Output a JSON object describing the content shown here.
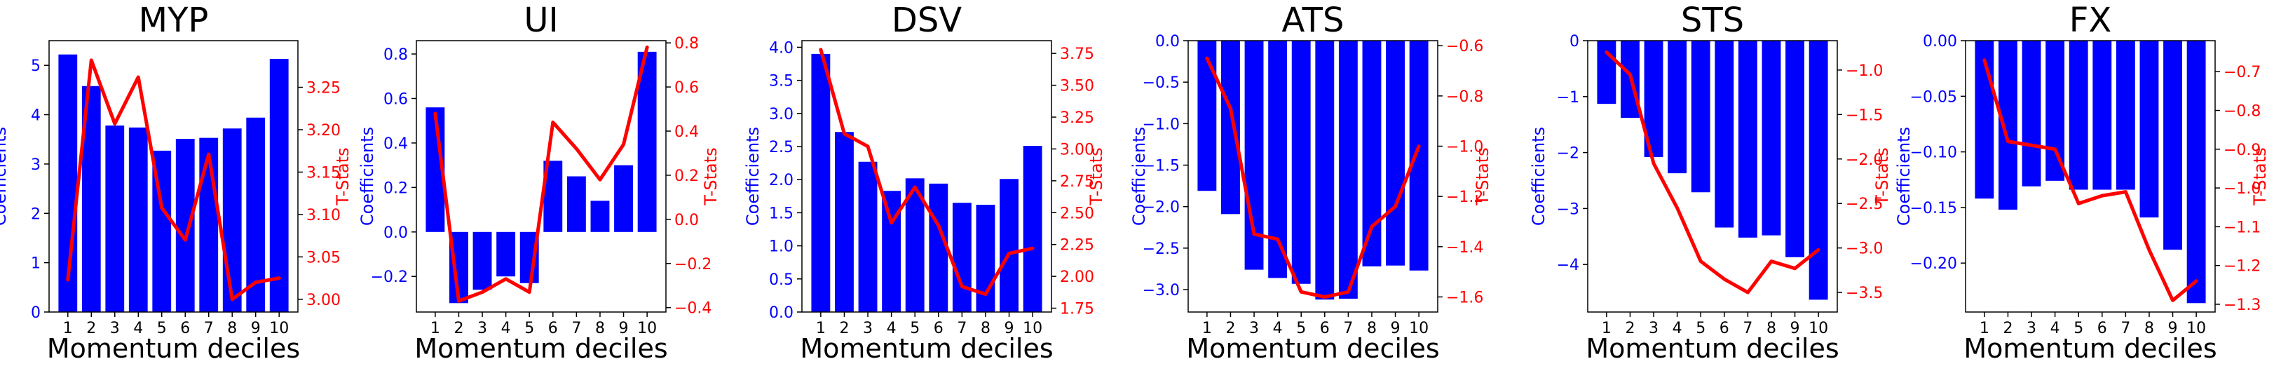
{
  "chart_data": [
    {
      "type": "bar+line",
      "title": "MYP",
      "xlabel": "Momentum deciles",
      "ylabel_left": "Coefficients",
      "ylabel_right": "T-Stats",
      "categories": [
        "1",
        "2",
        "3",
        "4",
        "5",
        "6",
        "7",
        "8",
        "9",
        "10"
      ],
      "coefficients": [
        5.22,
        4.58,
        3.78,
        3.74,
        3.27,
        3.51,
        3.53,
        3.72,
        3.94,
        5.13
      ],
      "tstats": [
        3.023,
        3.282,
        3.207,
        3.262,
        3.108,
        3.07,
        3.171,
        3.0,
        3.02,
        3.025
      ],
      "ylim_left": [
        0,
        5.5
      ],
      "ylim_right": [
        2.985,
        3.305
      ],
      "yticks_left": [
        0,
        1,
        2,
        3,
        4,
        5
      ],
      "yticks_right": [
        3.0,
        3.05,
        3.1,
        3.15,
        3.2,
        3.25
      ],
      "ytick_labels_left": [
        "0",
        "1",
        "2",
        "3",
        "4",
        "5"
      ],
      "ytick_labels_right": [
        "3.00",
        "3.05",
        "3.10",
        "3.15",
        "3.20",
        "3.25"
      ]
    },
    {
      "type": "bar+line",
      "title": "UI",
      "xlabel": "Momentum deciles",
      "ylabel_left": "Coefficients",
      "ylabel_right": "T-Stats",
      "categories": [
        "1",
        "2",
        "3",
        "4",
        "5",
        "6",
        "7",
        "8",
        "9",
        "10"
      ],
      "coefficients": [
        0.56,
        -0.32,
        -0.26,
        -0.2,
        -0.23,
        0.32,
        0.25,
        0.14,
        0.3,
        0.81
      ],
      "tstats": [
        0.48,
        -0.37,
        -0.33,
        -0.27,
        -0.33,
        0.44,
        0.32,
        0.18,
        0.34,
        0.78
      ],
      "ylim_left": [
        -0.36,
        0.86
      ],
      "ylim_right": [
        -0.42,
        0.81
      ],
      "yticks_left": [
        -0.2,
        0.0,
        0.2,
        0.4,
        0.6,
        0.8
      ],
      "yticks_right": [
        -0.4,
        -0.2,
        0.0,
        0.2,
        0.4,
        0.6,
        0.8
      ],
      "ytick_labels_left": [
        "−0.2",
        "0.0",
        "0.2",
        "0.4",
        "0.6",
        "0.8"
      ],
      "ytick_labels_right": [
        "−0.4",
        "−0.2",
        "0.0",
        "0.2",
        "0.4",
        "0.6",
        "0.8"
      ]
    },
    {
      "type": "bar+line",
      "title": "DSV",
      "xlabel": "Momentum deciles",
      "ylabel_left": "Coefficients",
      "ylabel_right": "T-Stats",
      "categories": [
        "1",
        "2",
        "3",
        "4",
        "5",
        "6",
        "7",
        "8",
        "9",
        "10"
      ],
      "coefficients": [
        3.9,
        2.72,
        2.27,
        1.83,
        2.02,
        1.94,
        1.65,
        1.62,
        2.01,
        2.51
      ],
      "tstats": [
        3.78,
        3.12,
        3.02,
        2.42,
        2.7,
        2.4,
        1.92,
        1.86,
        2.18,
        2.22
      ],
      "ylim_left": [
        0,
        4.1
      ],
      "ylim_right": [
        1.72,
        3.85
      ],
      "yticks_left": [
        0.0,
        0.5,
        1.0,
        1.5,
        2.0,
        2.5,
        3.0,
        3.5,
        4.0
      ],
      "yticks_right": [
        1.75,
        2.0,
        2.25,
        2.5,
        2.75,
        3.0,
        3.25,
        3.5,
        3.75
      ],
      "ytick_labels_left": [
        "0.0",
        "0.5",
        "1.0",
        "1.5",
        "2.0",
        "2.5",
        "3.0",
        "3.5",
        "4.0"
      ],
      "ytick_labels_right": [
        "1.75",
        "2.00",
        "2.25",
        "2.50",
        "2.75",
        "3.00",
        "3.25",
        "3.50",
        "3.75"
      ]
    },
    {
      "type": "bar+line",
      "title": "ATS",
      "xlabel": "Momentum deciles",
      "ylabel_left": "Coefficients",
      "ylabel_right": "T-Stats",
      "categories": [
        "1",
        "2",
        "3",
        "4",
        "5",
        "6",
        "7",
        "8",
        "9",
        "10"
      ],
      "coefficients": [
        -1.81,
        -2.09,
        -2.76,
        -2.86,
        -2.93,
        -3.12,
        -3.11,
        -2.72,
        -2.71,
        -2.77
      ],
      "tstats": [
        -0.65,
        -0.85,
        -1.35,
        -1.37,
        -1.58,
        -1.6,
        -1.58,
        -1.32,
        -1.24,
        -1.0
      ],
      "ylim_left": [
        -3.27,
        0.0
      ],
      "ylim_right": [
        -1.66,
        -0.58
      ],
      "yticks_left": [
        -3.0,
        -2.5,
        -2.0,
        -1.5,
        -1.0,
        -0.5,
        0.0
      ],
      "yticks_right": [
        -1.6,
        -1.4,
        -1.2,
        -1.0,
        -0.8,
        -0.6
      ],
      "ytick_labels_left": [
        "−3.0",
        "−2.5",
        "−2.0",
        "−1.5",
        "−1.0",
        "−0.5",
        "0.0"
      ],
      "ytick_labels_right": [
        "−1.6",
        "−1.4",
        "−1.2",
        "−1.0",
        "−0.8",
        "−0.6"
      ]
    },
    {
      "type": "bar+line",
      "title": "STS",
      "xlabel": "Momentum deciles",
      "ylabel_left": "Coefficients",
      "ylabel_right": "T-Stats",
      "categories": [
        "1",
        "2",
        "3",
        "4",
        "5",
        "6",
        "7",
        "8",
        "9",
        "10"
      ],
      "coefficients": [
        -1.13,
        -1.38,
        -2.08,
        -2.37,
        -2.71,
        -3.34,
        -3.52,
        -3.48,
        -3.87,
        -4.63
      ],
      "tstats": [
        -0.8,
        -1.05,
        -2.05,
        -2.55,
        -3.15,
        -3.35,
        -3.5,
        -3.15,
        -3.23,
        -3.02
      ],
      "ylim_left": [
        -4.85,
        0.0
      ],
      "ylim_right": [
        -3.72,
        -0.67
      ],
      "yticks_left": [
        -4,
        -3,
        -2,
        -1,
        0
      ],
      "yticks_right": [
        -3.5,
        -3.0,
        -2.5,
        -2.0,
        -1.5,
        -1.0
      ],
      "ytick_labels_left": [
        "−4",
        "−3",
        "−2",
        "−1",
        "0"
      ],
      "ytick_labels_right": [
        "−3.5",
        "−3.0",
        "−2.5",
        "−2.0",
        "−1.5",
        "−1.0"
      ]
    },
    {
      "type": "bar+line",
      "title": "FX",
      "xlabel": "Momentum deciles",
      "ylabel_left": "Coefficients",
      "ylabel_right": "T-Stats",
      "categories": [
        "1",
        "2",
        "3",
        "4",
        "5",
        "6",
        "7",
        "8",
        "9",
        "10"
      ],
      "coefficients": [
        -0.142,
        -0.152,
        -0.131,
        -0.126,
        -0.134,
        -0.134,
        -0.134,
        -0.159,
        -0.188,
        -0.236
      ],
      "tstats": [
        -0.67,
        -0.88,
        -0.89,
        -0.9,
        -1.04,
        -1.02,
        -1.01,
        -1.16,
        -1.29,
        -1.24
      ],
      "ylim_left": [
        -0.244,
        0.0
      ],
      "ylim_right": [
        -1.32,
        -0.62
      ],
      "yticks_left": [
        -0.2,
        -0.15,
        -0.1,
        -0.05,
        0.0
      ],
      "yticks_right": [
        -1.3,
        -1.2,
        -1.1,
        -1.0,
        -0.9,
        -0.8,
        -0.7
      ],
      "ytick_labels_left": [
        "−0.20",
        "−0.15",
        "−0.10",
        "−0.05",
        "0.00"
      ],
      "ytick_labels_right": [
        "−1.3",
        "−1.2",
        "−1.1",
        "−1.0",
        "−0.9",
        "−0.8",
        "−0.7"
      ]
    }
  ],
  "colors": {
    "bars": "#0000ff",
    "line": "#ff0000",
    "left_axis_text": "#0000ff",
    "right_axis_text": "#ff0000",
    "axes": "#000000"
  }
}
